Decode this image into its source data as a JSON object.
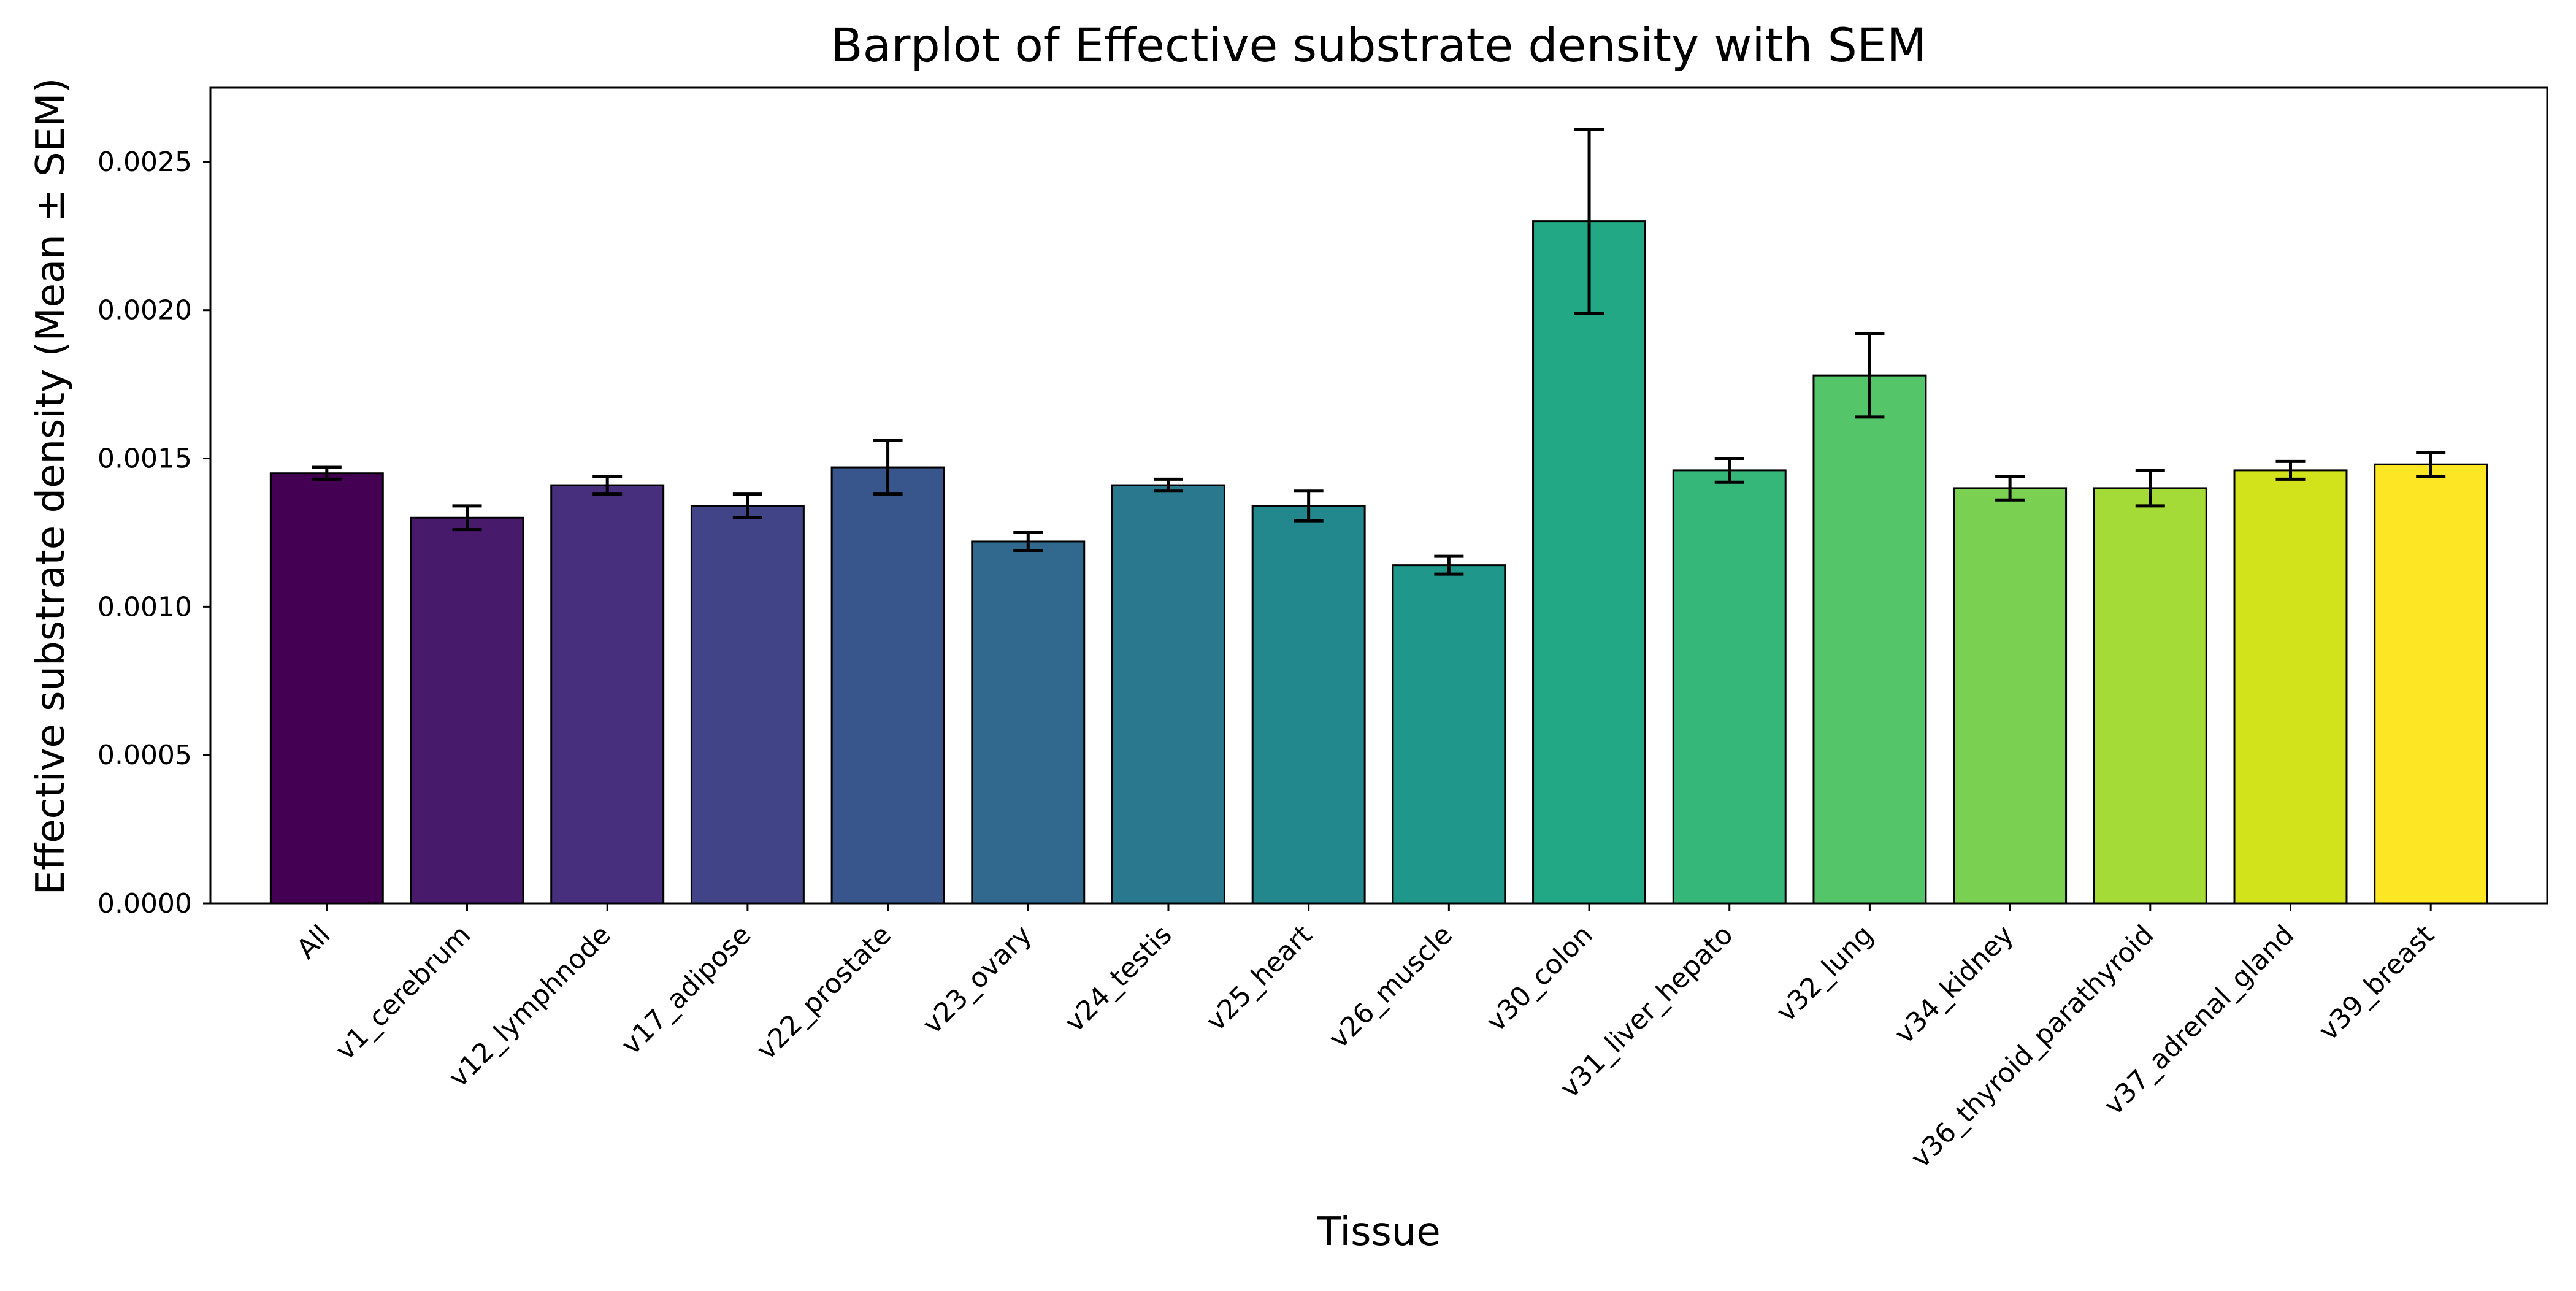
{
  "chart_data": {
    "type": "bar",
    "title": "Barplot of Effective substrate density with SEM",
    "xlabel": "Tissue",
    "ylabel": "Effective substrate density (Mean ± SEM)",
    "ylim": [
      0,
      0.00275
    ],
    "yticks": [
      0.0,
      0.0005,
      0.001,
      0.0015,
      0.002,
      0.0025
    ],
    "ytick_labels": [
      "0.0000",
      "0.0005",
      "0.0010",
      "0.0015",
      "0.0020",
      "0.0025"
    ],
    "grid": false,
    "categories": [
      "All",
      "v1_cerebrum",
      "v12_lymphnode",
      "v17_adipose",
      "v22_prostate",
      "v23_ovary",
      "v24_testis",
      "v25_heart",
      "v26_muscle",
      "v30_colon",
      "v31_liver_hepato",
      "v32_lung",
      "v34_kidney",
      "v36_thyroid_parathyroid",
      "v37_adrenal_gland",
      "v39_breast"
    ],
    "values": [
      0.00145,
      0.0013,
      0.00141,
      0.00134,
      0.00147,
      0.00122,
      0.00141,
      0.00134,
      0.00114,
      0.0023,
      0.00146,
      0.00178,
      0.0014,
      0.0014,
      0.00146,
      0.00148
    ],
    "errors": [
      2e-05,
      4e-05,
      3e-05,
      4e-05,
      9e-05,
      3e-05,
      2e-05,
      5e-05,
      3e-05,
      0.00031,
      4e-05,
      0.00014,
      4e-05,
      6e-05,
      3e-05,
      4e-05
    ],
    "colors": [
      "#440154",
      "#481a6c",
      "#472f7d",
      "#414487",
      "#39568c",
      "#31688e",
      "#2a788e",
      "#23888e",
      "#1f988b",
      "#22a884",
      "#35b779",
      "#54c568",
      "#7ad151",
      "#a5db36",
      "#d2e21b",
      "#fde725"
    ],
    "edge_color": "#000000"
  }
}
